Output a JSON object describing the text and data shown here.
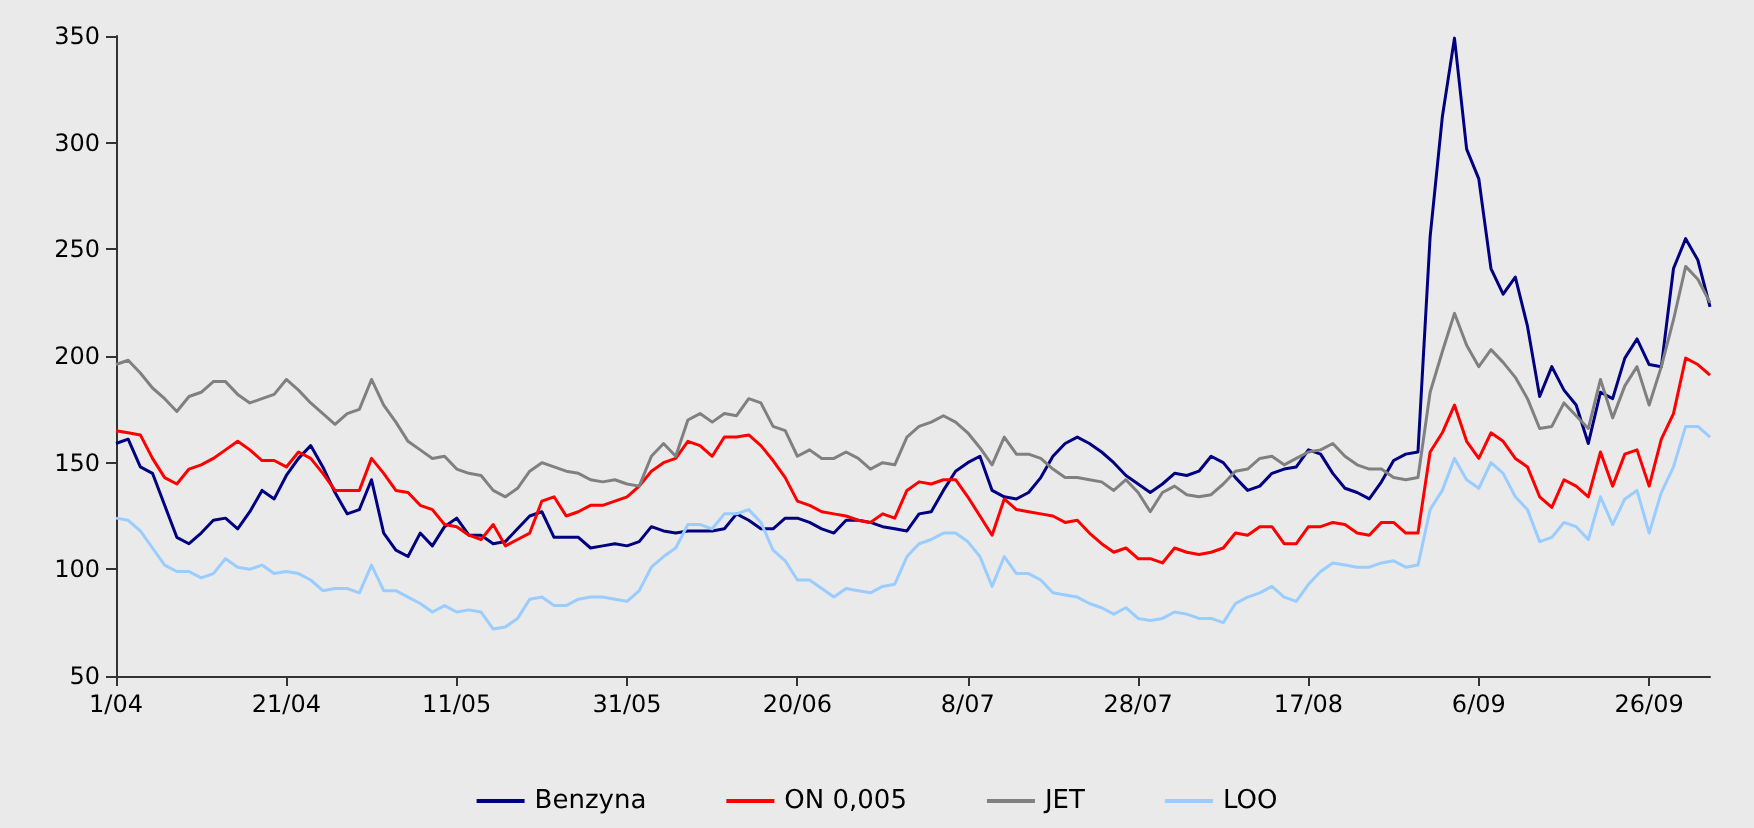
{
  "chart_data": {
    "type": "line",
    "categories": [
      "1/04",
      null,
      null,
      null,
      null,
      null,
      null,
      null,
      null,
      null,
      null,
      null,
      null,
      null,
      "21/04",
      null,
      null,
      null,
      null,
      null,
      null,
      null,
      null,
      null,
      null,
      null,
      null,
      null,
      "11/05",
      null,
      null,
      null,
      null,
      null,
      null,
      null,
      null,
      null,
      null,
      null,
      null,
      null,
      "31/05",
      null,
      null,
      null,
      null,
      null,
      null,
      null,
      null,
      null,
      null,
      null,
      null,
      null,
      "20/06",
      null,
      null,
      null,
      null,
      null,
      null,
      null,
      null,
      null,
      null,
      null,
      null,
      null,
      "8/07",
      null,
      null,
      null,
      null,
      null,
      null,
      null,
      null,
      null,
      null,
      null,
      null,
      null,
      "28/07",
      null,
      null,
      null,
      null,
      null,
      null,
      null,
      null,
      null,
      null,
      null,
      null,
      null,
      "17/08",
      null,
      null,
      null,
      null,
      null,
      null,
      null,
      null,
      null,
      null,
      null,
      null,
      null,
      "6/09",
      null,
      null,
      null,
      null,
      null,
      null,
      null,
      null,
      null,
      null,
      null,
      null,
      null,
      "26/09",
      null,
      null,
      null,
      null,
      null
    ],
    "series": [
      {
        "name": "Benzyna",
        "color": "#000080",
        "values": [
          159,
          161,
          148,
          145,
          130,
          115,
          112,
          117,
          123,
          124,
          119,
          127,
          137,
          133,
          144,
          152,
          158,
          148,
          136,
          126,
          128,
          142,
          117,
          109,
          106,
          117,
          111,
          120,
          124,
          116,
          116,
          112,
          113,
          119,
          125,
          127,
          115,
          115,
          115,
          110,
          111,
          112,
          111,
          113,
          120,
          118,
          117,
          118,
          118,
          118,
          119,
          126,
          123,
          119,
          119,
          124,
          124,
          122,
          119,
          117,
          123,
          123,
          122,
          120,
          119,
          118,
          126,
          127,
          137,
          146,
          150,
          153,
          137,
          134,
          133,
          136,
          143,
          153,
          159,
          162,
          159,
          155,
          150,
          144,
          140,
          136,
          140,
          145,
          144,
          146,
          153,
          150,
          143,
          137,
          139,
          145,
          147,
          148,
          156,
          154,
          145,
          138,
          136,
          133,
          141,
          151,
          154,
          155,
          256,
          312,
          349,
          297,
          283,
          241,
          229,
          237,
          214,
          181,
          195,
          184,
          177,
          159,
          183,
          180,
          199,
          208,
          196,
          195,
          241,
          255,
          245,
          223
        ]
      },
      {
        "name": "ON 0,005",
        "color": "#ff0000",
        "values": [
          165,
          164,
          163,
          152,
          143,
          140,
          147,
          149,
          152,
          156,
          160,
          156,
          151,
          151,
          148,
          155,
          152,
          145,
          137,
          137,
          137,
          152,
          145,
          137,
          136,
          130,
          128,
          121,
          120,
          116,
          114,
          121,
          111,
          114,
          117,
          132,
          134,
          125,
          127,
          130,
          130,
          132,
          134,
          139,
          146,
          150,
          152,
          160,
          158,
          153,
          162,
          162,
          163,
          158,
          151,
          143,
          132,
          130,
          127,
          126,
          125,
          123,
          122,
          126,
          124,
          137,
          141,
          140,
          142,
          142,
          134,
          125,
          116,
          133,
          128,
          127,
          126,
          125,
          122,
          123,
          117,
          112,
          108,
          110,
          105,
          105,
          103,
          110,
          108,
          107,
          108,
          110,
          117,
          116,
          120,
          120,
          112,
          112,
          120,
          120,
          122,
          121,
          117,
          116,
          122,
          122,
          117,
          117,
          155,
          164,
          177,
          160,
          152,
          164,
          160,
          152,
          148,
          134,
          129,
          142,
          139,
          134,
          155,
          139,
          154,
          156,
          139,
          161,
          173,
          199,
          196,
          191
        ]
      },
      {
        "name": "JET",
        "color": "#808080",
        "values": [
          196,
          198,
          192,
          185,
          180,
          174,
          181,
          183,
          188,
          188,
          182,
          178,
          180,
          182,
          189,
          184,
          178,
          173,
          168,
          173,
          175,
          189,
          177,
          169,
          160,
          156,
          152,
          153,
          147,
          145,
          144,
          137,
          134,
          138,
          146,
          150,
          148,
          146,
          145,
          142,
          141,
          142,
          140,
          139,
          153,
          159,
          153,
          170,
          173,
          169,
          173,
          172,
          180,
          178,
          167,
          165,
          153,
          156,
          152,
          152,
          155,
          152,
          147,
          150,
          149,
          162,
          167,
          169,
          172,
          169,
          164,
          157,
          149,
          162,
          154,
          154,
          152,
          147,
          143,
          143,
          142,
          141,
          137,
          142,
          136,
          127,
          136,
          139,
          135,
          134,
          135,
          140,
          146,
          147,
          152,
          153,
          149,
          152,
          155,
          156,
          159,
          153,
          149,
          147,
          147,
          143,
          142,
          143,
          183,
          202,
          220,
          205,
          195,
          203,
          197,
          190,
          180,
          166,
          167,
          178,
          172,
          166,
          189,
          171,
          186,
          195,
          177,
          195,
          217,
          242,
          236,
          225
        ]
      },
      {
        "name": "LOO",
        "color": "#99ccff",
        "values": [
          124,
          123,
          118,
          110,
          102,
          99,
          99,
          96,
          98,
          105,
          101,
          100,
          102,
          98,
          99,
          98,
          95,
          90,
          91,
          91,
          89,
          102,
          90,
          90,
          87,
          84,
          80,
          83,
          80,
          81,
          80,
          72,
          73,
          77,
          86,
          87,
          83,
          83,
          86,
          87,
          87,
          86,
          85,
          90,
          101,
          106,
          110,
          121,
          121,
          119,
          126,
          126,
          128,
          122,
          109,
          104,
          95,
          95,
          91,
          87,
          91,
          90,
          89,
          92,
          93,
          106,
          112,
          114,
          117,
          117,
          113,
          106,
          92,
          106,
          98,
          98,
          95,
          89,
          88,
          87,
          84,
          82,
          79,
          82,
          77,
          76,
          77,
          80,
          79,
          77,
          77,
          75,
          84,
          87,
          89,
          92,
          87,
          85,
          93,
          99,
          103,
          102,
          101,
          101,
          103,
          104,
          101,
          102,
          128,
          137,
          152,
          142,
          138,
          150,
          145,
          134,
          128,
          113,
          115,
          122,
          120,
          114,
          134,
          121,
          133,
          137,
          117,
          136,
          148,
          167,
          167,
          162
        ]
      }
    ],
    "ylim": [
      50,
      350
    ],
    "yticks": [
      50,
      100,
      150,
      200,
      250,
      300,
      350
    ],
    "grid": false,
    "legend": "bottom",
    "marker": "none"
  }
}
